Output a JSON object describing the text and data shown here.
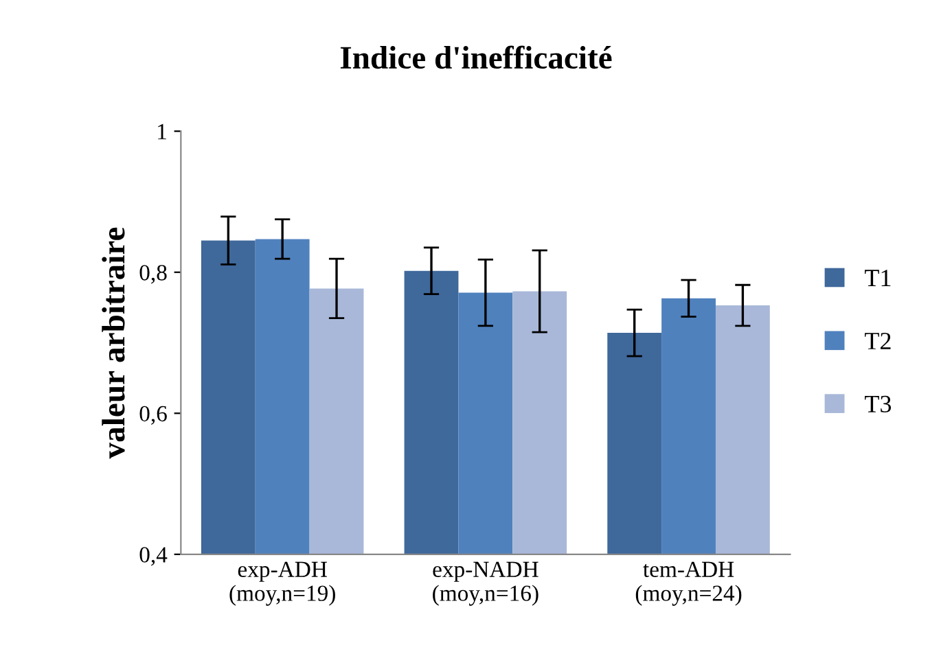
{
  "chart_data": {
    "type": "bar",
    "title": "Indice d'inefficacité",
    "ylabel": "valeur arbitraire",
    "categories": [
      "exp-ADH\n(moy,n=19)",
      "exp-NADH\n(moy,n=16)",
      "tem-ADH\n(moy,n=24)"
    ],
    "series": [
      {
        "name": "T1",
        "color": "#3f689b",
        "values": [
          0.845,
          0.802,
          0.714
        ],
        "errors": [
          0.034,
          0.033,
          0.033
        ]
      },
      {
        "name": "T2",
        "color": "#4f81bd",
        "values": [
          0.847,
          0.771,
          0.763
        ],
        "errors": [
          0.028,
          0.047,
          0.026
        ]
      },
      {
        "name": "T3",
        "color": "#a9b8d9",
        "values": [
          0.777,
          0.773,
          0.753
        ],
        "errors": [
          0.042,
          0.058,
          0.029
        ]
      }
    ],
    "ylim": [
      0.4,
      1
    ],
    "yticks": [
      {
        "value": 0.4,
        "label": "0,4"
      },
      {
        "value": 0.6,
        "label": "0,6"
      },
      {
        "value": 0.8,
        "label": "0,8"
      },
      {
        "value": 1,
        "label": "1"
      }
    ],
    "grid": false,
    "legend": "right"
  }
}
